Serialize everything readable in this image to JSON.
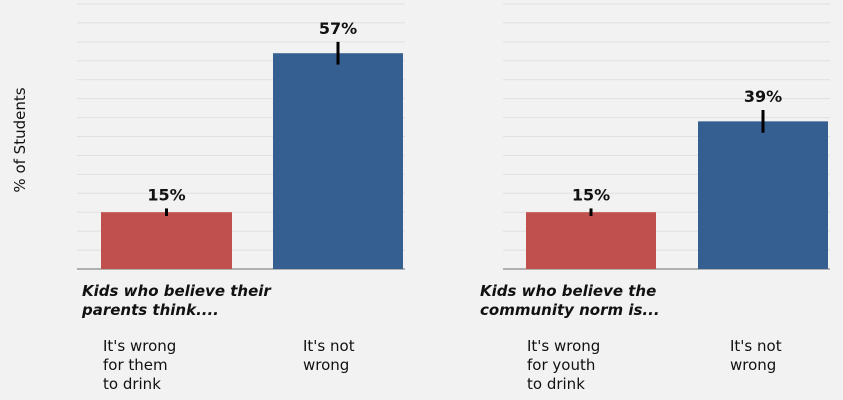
{
  "ylabel": "% of Students",
  "chart_data": [
    {
      "type": "bar",
      "caption": "Kids who believe their\nparents think....",
      "categories": [
        "It's wrong\n for them\nto drink",
        "It's not\nwrong"
      ],
      "values": [
        15,
        57
      ],
      "labels": [
        "15%",
        "57%"
      ],
      "error": [
        1.0,
        3.0
      ],
      "colors": [
        "#c0504d",
        "#365f91"
      ],
      "ylim": [
        0,
        70
      ],
      "grid": true
    },
    {
      "type": "bar",
      "caption": "Kids who believe the\ncommunity norm is...",
      "categories": [
        "It's wrong\n for youth\nto drink",
        "It's not\nwrong"
      ],
      "values": [
        15,
        39
      ],
      "labels": [
        "15%",
        "39%"
      ],
      "error": [
        1.0,
        3.0
      ],
      "colors": [
        "#c0504d",
        "#365f91"
      ],
      "ylim": [
        0,
        70
      ],
      "grid": true
    }
  ]
}
